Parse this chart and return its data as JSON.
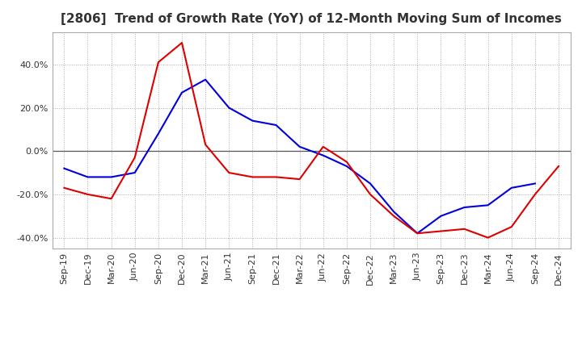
{
  "title": "[2806]  Trend of Growth Rate (YoY) of 12-Month Moving Sum of Incomes",
  "title_fontsize": 11,
  "ylim": [
    -0.45,
    0.55
  ],
  "yticks": [
    -0.4,
    -0.2,
    0.0,
    0.2,
    0.4
  ],
  "background_color": "#ffffff",
  "grid_color": "#aaaaaa",
  "ordinary_color": "#0000dd",
  "net_color": "#dd0000",
  "x_labels": [
    "Sep-19",
    "Dec-19",
    "Mar-20",
    "Jun-20",
    "Sep-20",
    "Dec-20",
    "Mar-21",
    "Jun-21",
    "Sep-21",
    "Dec-21",
    "Mar-22",
    "Jun-22",
    "Sep-22",
    "Dec-22",
    "Mar-23",
    "Jun-23",
    "Sep-23",
    "Dec-23",
    "Mar-24",
    "Jun-24",
    "Sep-24",
    "Dec-24"
  ],
  "ordinary_income": [
    -0.08,
    -0.12,
    -0.12,
    -0.1,
    0.08,
    0.27,
    0.33,
    0.2,
    0.14,
    0.12,
    0.02,
    -0.02,
    -0.07,
    -0.15,
    -0.28,
    -0.38,
    -0.3,
    -0.26,
    -0.25,
    -0.17,
    -0.15,
    null
  ],
  "net_income": [
    -0.17,
    -0.2,
    -0.22,
    -0.03,
    0.41,
    0.5,
    0.03,
    -0.1,
    -0.12,
    -0.12,
    -0.13,
    0.02,
    -0.05,
    -0.2,
    -0.3,
    -0.38,
    -0.37,
    -0.36,
    -0.4,
    -0.35,
    -0.2,
    -0.07
  ]
}
